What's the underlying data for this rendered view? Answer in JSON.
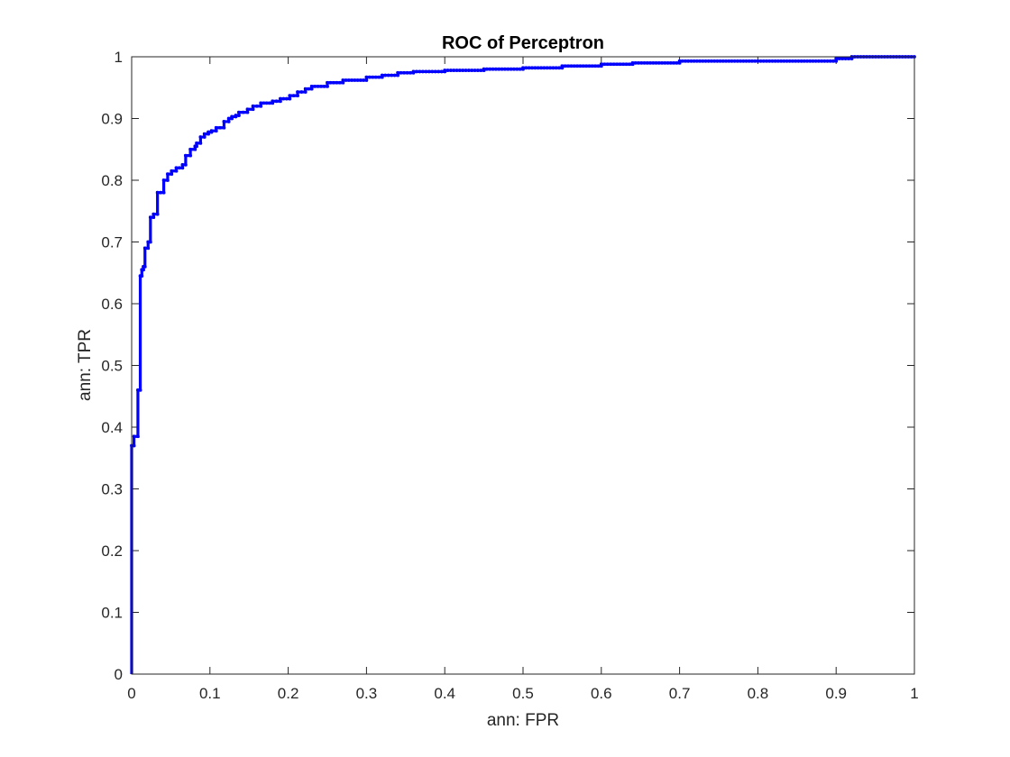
{
  "chart_data": {
    "type": "line",
    "title": "ROC of Perceptron",
    "xlabel": "ann: FPR",
    "ylabel": "ann: TPR",
    "xlim": [
      0,
      1
    ],
    "ylim": [
      0,
      1
    ],
    "xticks": [
      "0",
      "0.1",
      "0.2",
      "0.3",
      "0.4",
      "0.5",
      "0.6",
      "0.7",
      "0.8",
      "0.9",
      "1"
    ],
    "yticks": [
      "0",
      "0.1",
      "0.2",
      "0.3",
      "0.4",
      "0.5",
      "0.6",
      "0.7",
      "0.8",
      "0.9",
      "1"
    ],
    "grid": false,
    "legend": "none",
    "line_color": "#0000ff",
    "marker": "dot",
    "step": true,
    "series": [
      {
        "x": [
          0.0,
          0.0,
          0.003,
          0.003,
          0.008,
          0.008,
          0.011,
          0.011,
          0.013,
          0.013,
          0.015,
          0.015,
          0.017,
          0.017,
          0.021,
          0.021,
          0.024,
          0.024,
          0.028,
          0.028,
          0.033,
          0.033,
          0.041,
          0.041,
          0.046,
          0.046,
          0.051,
          0.051,
          0.057,
          0.057,
          0.065,
          0.065,
          0.069,
          0.069,
          0.075,
          0.075,
          0.081,
          0.081,
          0.083,
          0.083,
          0.088,
          0.088,
          0.093,
          0.093,
          0.098,
          0.098,
          0.102,
          0.102,
          0.108,
          0.108,
          0.118,
          0.118,
          0.124,
          0.124,
          0.128,
          0.128,
          0.133,
          0.133,
          0.137,
          0.137,
          0.148,
          0.148,
          0.155,
          0.155,
          0.165,
          0.165,
          0.18,
          0.18,
          0.19,
          0.19,
          0.202,
          0.202,
          0.212,
          0.212,
          0.222,
          0.222,
          0.23,
          0.23,
          0.25,
          0.25,
          0.27,
          0.27,
          0.3,
          0.3,
          0.32,
          0.32,
          0.34,
          0.34,
          0.36,
          0.36,
          0.4,
          0.4,
          0.45,
          0.45,
          0.5,
          0.5,
          0.55,
          0.55,
          0.6,
          0.6,
          0.64,
          0.64,
          0.7,
          0.7,
          0.9,
          0.9,
          0.92,
          0.92,
          1.0
        ],
        "y": [
          0.0,
          0.37,
          0.37,
          0.385,
          0.385,
          0.46,
          0.46,
          0.645,
          0.645,
          0.655,
          0.655,
          0.66,
          0.66,
          0.69,
          0.69,
          0.7,
          0.7,
          0.74,
          0.74,
          0.745,
          0.745,
          0.78,
          0.78,
          0.8,
          0.8,
          0.81,
          0.81,
          0.815,
          0.815,
          0.82,
          0.82,
          0.825,
          0.825,
          0.84,
          0.84,
          0.85,
          0.85,
          0.855,
          0.855,
          0.86,
          0.86,
          0.87,
          0.87,
          0.875,
          0.875,
          0.878,
          0.878,
          0.88,
          0.88,
          0.885,
          0.885,
          0.895,
          0.895,
          0.9,
          0.9,
          0.903,
          0.903,
          0.905,
          0.905,
          0.91,
          0.91,
          0.915,
          0.915,
          0.92,
          0.92,
          0.925,
          0.925,
          0.928,
          0.928,
          0.932,
          0.932,
          0.937,
          0.937,
          0.943,
          0.943,
          0.948,
          0.948,
          0.952,
          0.952,
          0.958,
          0.958,
          0.962,
          0.962,
          0.967,
          0.967,
          0.97,
          0.97,
          0.974,
          0.974,
          0.976,
          0.976,
          0.978,
          0.978,
          0.98,
          0.98,
          0.982,
          0.982,
          0.985,
          0.985,
          0.988,
          0.988,
          0.99,
          0.99,
          0.993,
          0.993,
          0.997,
          0.997,
          1.0,
          1.0
        ]
      }
    ]
  }
}
